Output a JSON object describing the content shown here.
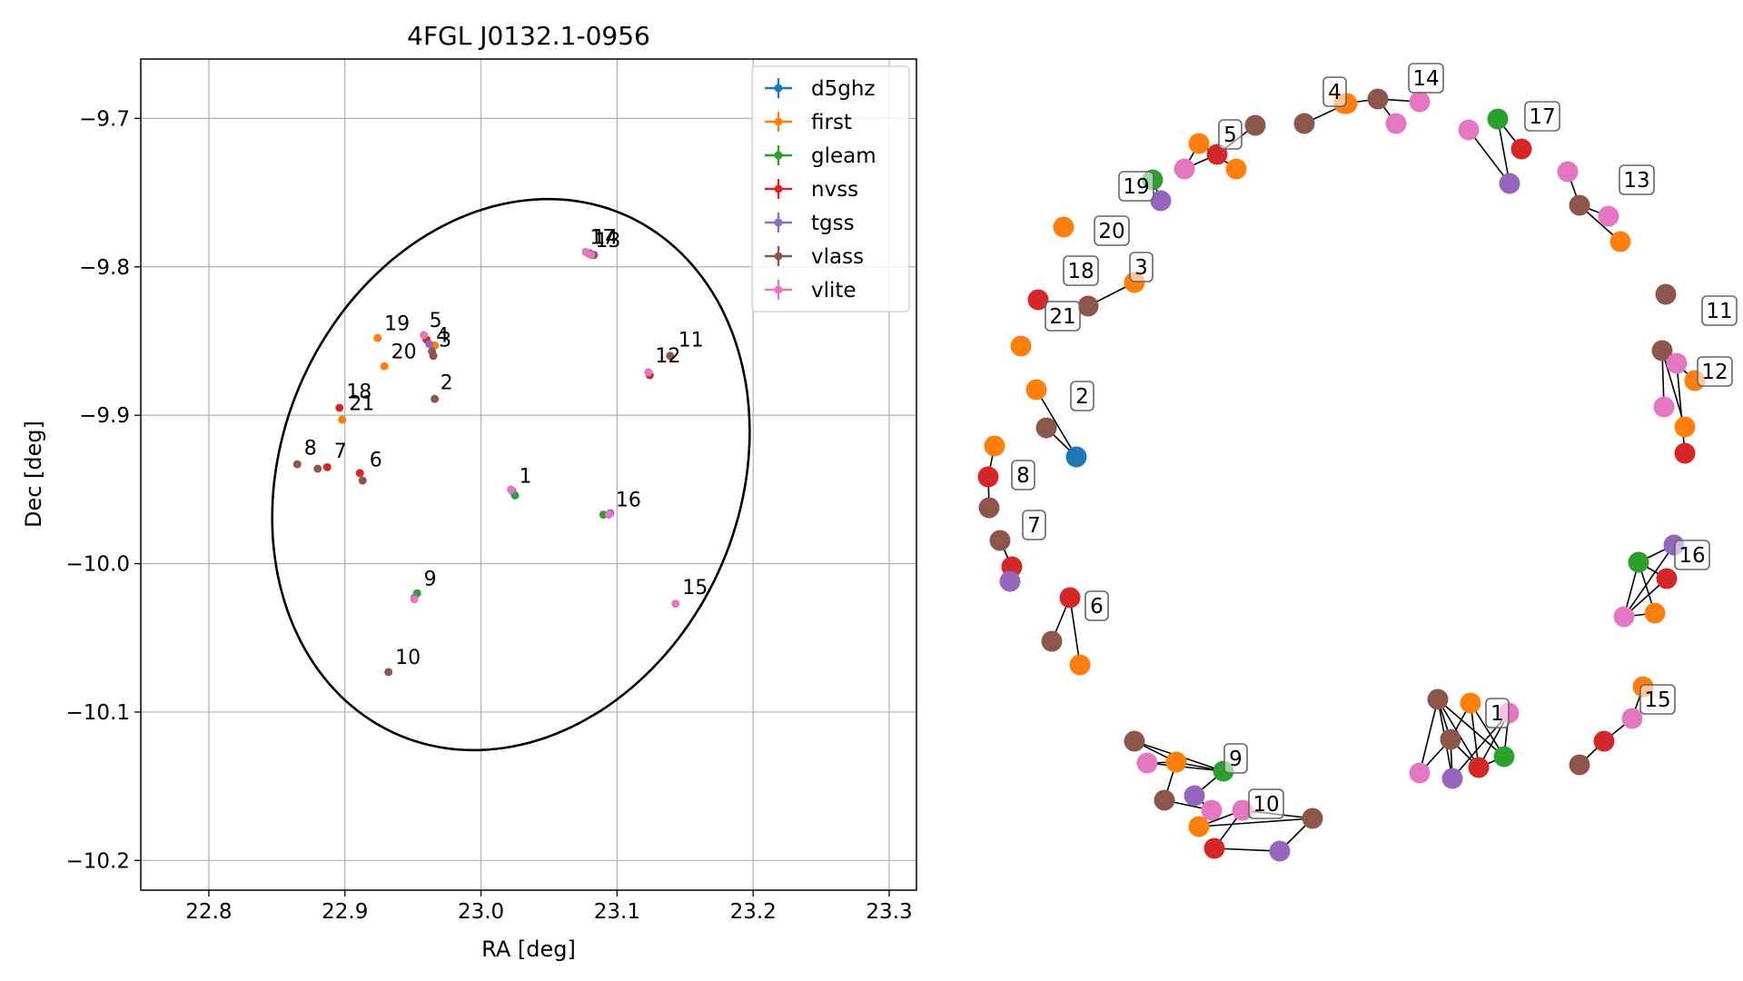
{
  "figure": {
    "colors": {
      "d5ghz": "#1f77b4",
      "first": "#ff7f0e",
      "gleam": "#2ca02c",
      "nvss": "#d62728",
      "tgss": "#9467bd",
      "vlass": "#8c564b",
      "vlite": "#e377c2"
    }
  },
  "chart_data": [
    {
      "type": "scatter",
      "title": "4FGL J0132.1-0956",
      "xlabel": "RA [deg]",
      "ylabel": "Dec [deg]",
      "xlim": [
        22.75,
        23.32
      ],
      "ylim": [
        -10.22,
        -9.66
      ],
      "xticks": [
        22.8,
        22.9,
        23.0,
        23.1,
        23.2,
        23.3
      ],
      "xtick_labels": [
        "22.8",
        "22.9",
        "23.0",
        "23.1",
        "23.2",
        "23.3"
      ],
      "yticks": [
        -9.7,
        -9.8,
        -9.9,
        -10.0,
        -10.1,
        -10.2
      ],
      "ytick_labels": [
        "−9.7",
        "−9.8",
        "−9.9",
        "−10.0",
        "−10.1",
        "−10.2"
      ],
      "grid": true,
      "legend_position": "top-right",
      "legend": [
        "d5ghz",
        "first",
        "gleam",
        "nvss",
        "tgss",
        "vlass",
        "vlite"
      ],
      "ellipse": {
        "center": [
          23.022,
          -9.94
        ],
        "semi_axes": [
          0.165,
          0.195
        ],
        "angle_deg": -35
      },
      "series": [
        {
          "name": "d5ghz",
          "points": []
        },
        {
          "name": "first",
          "points": [
            [
              22.924,
              -9.848
            ],
            [
              22.929,
              -9.867
            ],
            [
              22.898,
              -9.903
            ],
            [
              22.958,
              -9.846
            ],
            [
              22.966,
              -9.853
            ],
            [
              23.079,
              -9.791
            ]
          ]
        },
        {
          "name": "gleam",
          "points": [
            [
              23.025,
              -9.954
            ],
            [
              23.09,
              -9.967
            ],
            [
              22.953,
              -10.02
            ]
          ]
        },
        {
          "name": "nvss",
          "points": [
            [
              22.896,
              -9.895
            ],
            [
              22.887,
              -9.935
            ],
            [
              22.911,
              -9.939
            ],
            [
              23.124,
              -9.873
            ],
            [
              22.96,
              -9.849
            ],
            [
              23.08,
              -9.791
            ]
          ]
        },
        {
          "name": "tgss",
          "points": [
            [
              22.962,
              -9.852
            ],
            [
              23.023,
              -9.951
            ],
            [
              22.951,
              -10.023
            ],
            [
              23.095,
              -9.966
            ]
          ]
        },
        {
          "name": "vlass",
          "points": [
            [
              22.865,
              -9.933
            ],
            [
              22.88,
              -9.936
            ],
            [
              22.913,
              -9.944
            ],
            [
              22.966,
              -9.889
            ],
            [
              22.965,
              -9.86
            ],
            [
              22.964,
              -9.857
            ],
            [
              23.139,
              -9.86
            ],
            [
              22.932,
              -10.073
            ],
            [
              23.083,
              -9.792
            ]
          ]
        },
        {
          "name": "vlite",
          "points": [
            [
              22.958,
              -9.846
            ],
            [
              23.022,
              -9.95
            ],
            [
              22.951,
              -10.024
            ],
            [
              23.094,
              -9.967
            ],
            [
              23.143,
              -10.027
            ],
            [
              23.123,
              -9.871
            ],
            [
              23.077,
              -9.79
            ],
            [
              23.081,
              -9.792
            ]
          ]
        }
      ],
      "annotations": [
        {
          "text": "1",
          "x": 23.028,
          "y": -9.948
        },
        {
          "text": "2",
          "x": 22.97,
          "y": -9.885
        },
        {
          "text": "3",
          "x": 22.969,
          "y": -9.856
        },
        {
          "text": "4",
          "x": 22.967,
          "y": -9.853
        },
        {
          "text": "5",
          "x": 22.962,
          "y": -9.843
        },
        {
          "text": "6",
          "x": 22.918,
          "y": -9.937
        },
        {
          "text": "7",
          "x": 22.892,
          "y": -9.931
        },
        {
          "text": "8",
          "x": 22.87,
          "y": -9.929
        },
        {
          "text": "9",
          "x": 22.958,
          "y": -10.017
        },
        {
          "text": "10",
          "x": 22.937,
          "y": -10.07
        },
        {
          "text": "11",
          "x": 23.145,
          "y": -9.856
        },
        {
          "text": "12",
          "x": 23.128,
          "y": -9.867
        },
        {
          "text": "13",
          "x": 23.084,
          "y": -9.789
        },
        {
          "text": "14",
          "x": 23.082,
          "y": -9.787
        },
        {
          "text": "15",
          "x": 23.148,
          "y": -10.023
        },
        {
          "text": "16",
          "x": 23.099,
          "y": -9.964
        },
        {
          "text": "17",
          "x": 23.08,
          "y": -9.787
        },
        {
          "text": "18",
          "x": 22.901,
          "y": -9.891
        },
        {
          "text": "19",
          "x": 22.929,
          "y": -9.845
        },
        {
          "text": "20",
          "x": 22.934,
          "y": -9.864
        },
        {
          "text": "21",
          "x": 22.903,
          "y": -9.899
        }
      ]
    },
    {
      "type": "network",
      "clusters": [
        {
          "label": "4",
          "nodes": [
            [
              "vlass",
              "vlass"
            ],
            [
              "first",
              "first"
            ]
          ],
          "edges": [
            [
              0,
              1
            ]
          ]
        },
        {
          "label": "14",
          "nodes": [
            [
              "first",
              "first"
            ],
            [
              "vlass",
              "vlass"
            ],
            [
              "vlite",
              "vlite"
            ],
            [
              "vlite",
              "vlite"
            ]
          ],
          "edges": [
            [
              0,
              1
            ],
            [
              1,
              2
            ],
            [
              1,
              3
            ]
          ]
        },
        {
          "label": "17",
          "nodes": [
            [
              "vlite",
              "vlite"
            ],
            [
              "gleam",
              "gleam"
            ],
            [
              "tgss",
              "tgss"
            ],
            [
              "nvss",
              "nvss"
            ]
          ],
          "edges": [
            [
              0,
              2
            ],
            [
              1,
              2
            ],
            [
              1,
              3
            ]
          ]
        },
        {
          "label": "5",
          "nodes": [
            [
              "vlass",
              "vlass"
            ],
            [
              "first",
              "first"
            ],
            [
              "nvss",
              "nvss"
            ],
            [
              "first",
              "first"
            ],
            [
              "vlite",
              "vlite"
            ]
          ],
          "edges": [
            [
              0,
              2
            ],
            [
              1,
              3
            ],
            [
              2,
              4
            ],
            [
              1,
              4
            ]
          ]
        },
        {
          "label": "19",
          "nodes": [
            [
              "gleam",
              "gleam"
            ],
            [
              "tgss",
              "tgss"
            ]
          ],
          "edges": [
            [
              0,
              1
            ]
          ]
        },
        {
          "label": "13",
          "nodes": [
            [
              "vlite",
              "vlite"
            ],
            [
              "vlass",
              "vlass"
            ],
            [
              "vlite",
              "vlite"
            ],
            [
              "first",
              "first"
            ]
          ],
          "edges": [
            [
              0,
              1
            ],
            [
              1,
              3
            ],
            [
              1,
              2
            ]
          ]
        },
        {
          "label": "20",
          "nodes": [
            [
              "first",
              "first"
            ]
          ],
          "edges": []
        },
        {
          "label": "3",
          "nodes": [
            [
              "first",
              "first"
            ],
            [
              "vlass",
              "vlass"
            ]
          ],
          "edges": [
            [
              0,
              1
            ]
          ]
        },
        {
          "label": "18",
          "nodes": [
            [
              "nvss",
              "nvss"
            ]
          ],
          "edges": []
        },
        {
          "label": "21",
          "nodes": [
            [
              "first",
              "first"
            ]
          ],
          "edges": []
        },
        {
          "label": "11",
          "nodes": [
            [
              "vlass",
              "vlass"
            ]
          ],
          "edges": []
        },
        {
          "label": "12",
          "nodes": [
            [
              "vlass",
              "vlass"
            ],
            [
              "vlite",
              "vlite"
            ],
            [
              "first",
              "first"
            ],
            [
              "vlite",
              "vlite"
            ],
            [
              "first",
              "first"
            ],
            [
              "nvss",
              "nvss"
            ]
          ],
          "edges": [
            [
              0,
              1
            ],
            [
              0,
              2
            ],
            [
              0,
              4
            ],
            [
              1,
              5
            ],
            [
              0,
              3
            ]
          ]
        },
        {
          "label": "2",
          "nodes": [
            [
              "first",
              "first"
            ],
            [
              "vlass",
              "vlass"
            ],
            [
              "d5ghz",
              "d5ghz"
            ]
          ],
          "edges": [
            [
              0,
              2
            ],
            [
              1,
              2
            ]
          ]
        },
        {
          "label": "8",
          "nodes": [
            [
              "first",
              "first"
            ],
            [
              "nvss",
              "nvss"
            ],
            [
              "vlass",
              "vlass"
            ]
          ],
          "edges": [
            [
              0,
              1
            ],
            [
              1,
              2
            ]
          ]
        },
        {
          "label": "7",
          "nodes": [
            [
              "vlass",
              "vlass"
            ],
            [
              "nvss",
              "nvss"
            ],
            [
              "tgss",
              "tgss"
            ]
          ],
          "edges": [
            [
              0,
              1
            ],
            [
              1,
              2
            ]
          ]
        },
        {
          "label": "16",
          "nodes": [
            [
              "tgss",
              "tgss"
            ],
            [
              "gleam",
              "gleam"
            ],
            [
              "nvss",
              "nvss"
            ],
            [
              "first",
              "first"
            ],
            [
              "vlite",
              "vlite"
            ]
          ],
          "edges": [
            [
              0,
              1
            ],
            [
              1,
              2
            ],
            [
              1,
              3
            ],
            [
              2,
              4
            ],
            [
              3,
              4
            ],
            [
              0,
              4
            ],
            [
              1,
              4
            ]
          ]
        },
        {
          "label": "6",
          "nodes": [
            [
              "nvss",
              "nvss"
            ],
            [
              "vlass",
              "vlass"
            ],
            [
              "first",
              "first"
            ]
          ],
          "edges": [
            [
              0,
              1
            ],
            [
              0,
              2
            ]
          ]
        },
        {
          "label": "15",
          "nodes": [
            [
              "first",
              "first"
            ],
            [
              "vlite",
              "vlite"
            ],
            [
              "nvss",
              "nvss"
            ],
            [
              "vlass",
              "vlass"
            ]
          ],
          "edges": [
            [
              0,
              1
            ],
            [
              1,
              2
            ],
            [
              2,
              3
            ]
          ]
        },
        {
          "label": "1",
          "nodes": [
            [
              "vlass",
              "vlass"
            ],
            [
              "first",
              "first"
            ],
            [
              "vlite",
              "vlite"
            ],
            [
              "vlass",
              "vlass"
            ],
            [
              "gleam",
              "gleam"
            ],
            [
              "nvss",
              "nvss"
            ],
            [
              "tgss",
              "tgss"
            ],
            [
              "vlite",
              "vlite"
            ]
          ],
          "edges": [
            [
              0,
              3
            ],
            [
              0,
              5
            ],
            [
              0,
              6
            ],
            [
              0,
              7
            ],
            [
              1,
              3
            ],
            [
              1,
              4
            ],
            [
              1,
              5
            ],
            [
              2,
              4
            ],
            [
              2,
              6
            ],
            [
              3,
              6
            ],
            [
              3,
              7
            ],
            [
              3,
              5
            ],
            [
              4,
              5
            ],
            [
              2,
              5
            ],
            [
              0,
              4
            ]
          ]
        },
        {
          "label": "9",
          "nodes": [
            [
              "vlass",
              "vlass"
            ],
            [
              "vlite",
              "vlite"
            ],
            [
              "first",
              "first"
            ],
            [
              "gleam",
              "gleam"
            ],
            [
              "vlass",
              "vlass"
            ],
            [
              "tgss",
              "tgss"
            ],
            [
              "vlite",
              "vlite"
            ]
          ],
          "edges": [
            [
              0,
              2
            ],
            [
              0,
              3
            ],
            [
              1,
              2
            ],
            [
              2,
              3
            ],
            [
              2,
              4
            ],
            [
              3,
              5
            ],
            [
              4,
              6
            ],
            [
              5,
              6
            ],
            [
              1,
              3
            ]
          ]
        },
        {
          "label": "10",
          "nodes": [
            [
              "vlite",
              "vlite"
            ],
            [
              "first",
              "first"
            ],
            [
              "nvss",
              "nvss"
            ],
            [
              "tgss",
              "tgss"
            ],
            [
              "vlass",
              "vlass"
            ]
          ],
          "edges": [
            [
              0,
              1
            ],
            [
              0,
              2
            ],
            [
              0,
              4
            ],
            [
              1,
              4
            ],
            [
              2,
              3
            ],
            [
              3,
              4
            ]
          ]
        }
      ]
    }
  ]
}
